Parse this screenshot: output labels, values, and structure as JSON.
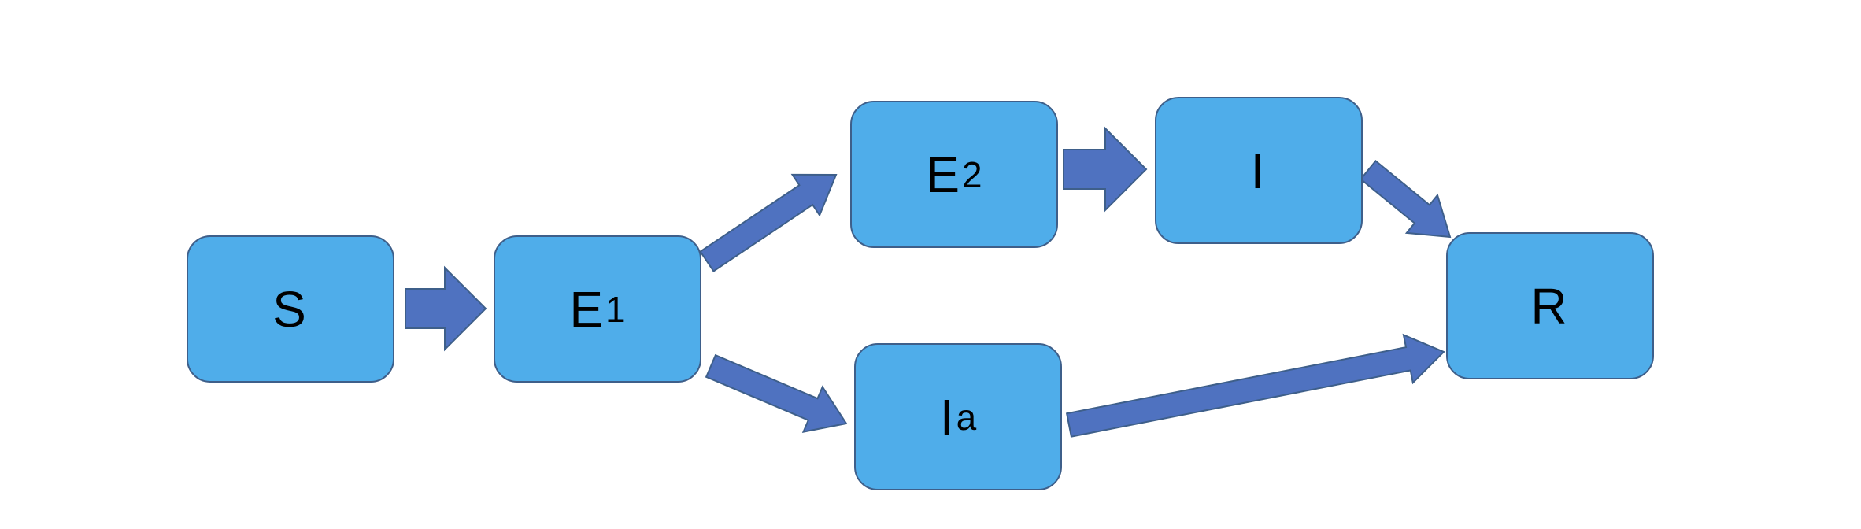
{
  "diagram": {
    "nodes": {
      "s": {
        "label": "S",
        "sub": ""
      },
      "e1": {
        "label": "E",
        "sub": "1"
      },
      "e2": {
        "label": "E",
        "sub": "2"
      },
      "i": {
        "label": "I",
        "sub": ""
      },
      "ia": {
        "label": "I",
        "sub": "a"
      },
      "r": {
        "label": "R",
        "sub": ""
      }
    },
    "edges": [
      {
        "from": "S",
        "to": "E1"
      },
      {
        "from": "E1",
        "to": "E2"
      },
      {
        "from": "E1",
        "to": "Ia"
      },
      {
        "from": "E2",
        "to": "I"
      },
      {
        "from": "I",
        "to": "R"
      },
      {
        "from": "Ia",
        "to": "R"
      }
    ],
    "colors": {
      "node_fill": "#4FADEA",
      "node_border": "#3E5F8A",
      "arrow_fill": "#4F72C0"
    }
  }
}
